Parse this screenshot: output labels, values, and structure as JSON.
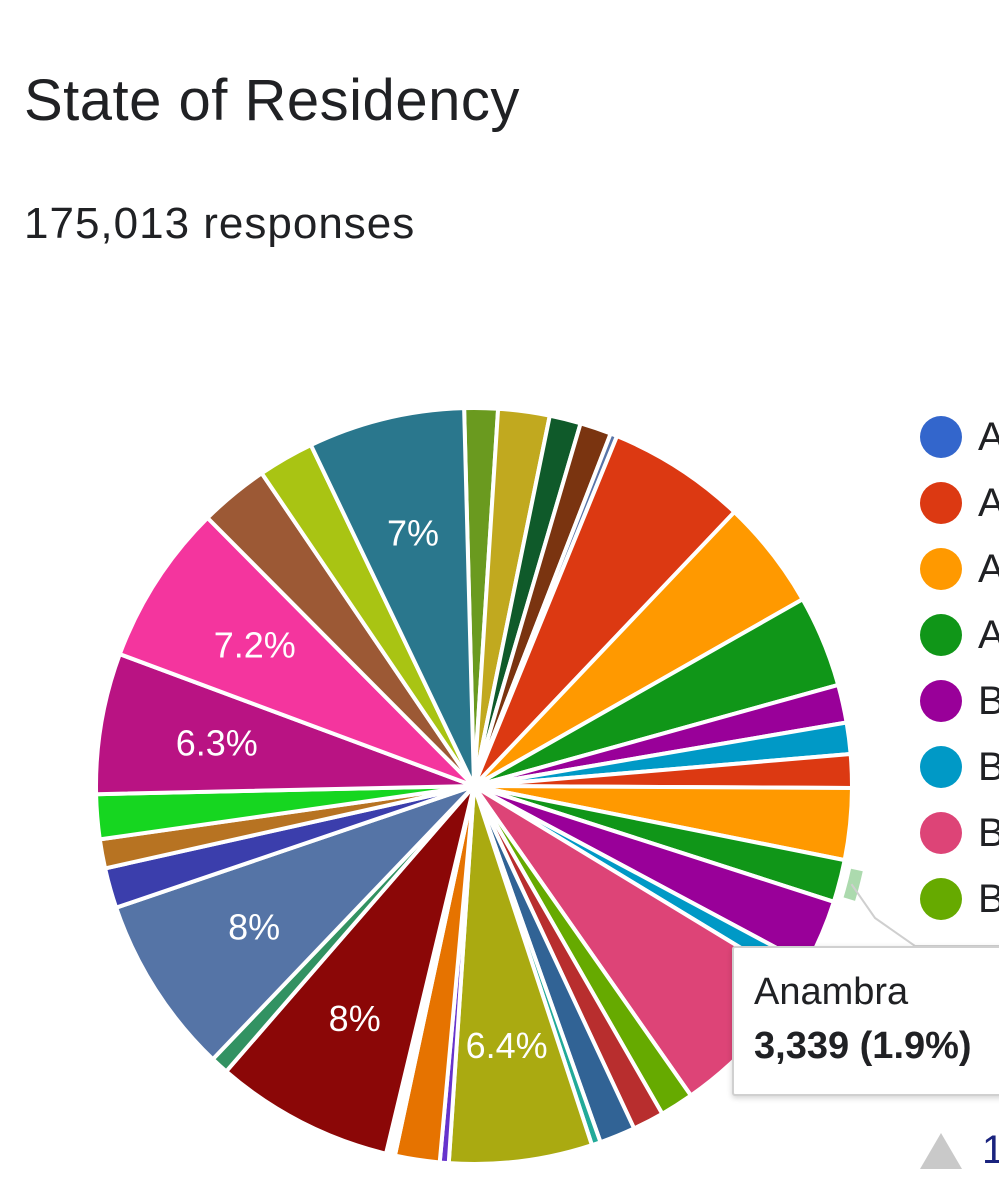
{
  "header": {
    "title": "State of Residency",
    "responses": "175,013 responses"
  },
  "legend": [
    {
      "label": "A",
      "color": "#3366cc"
    },
    {
      "label": "A",
      "color": "#dc3912"
    },
    {
      "label": "A",
      "color": "#ff9900"
    },
    {
      "label": "A",
      "color": "#109618"
    },
    {
      "label": "B",
      "color": "#990099"
    },
    {
      "label": "B",
      "color": "#0099c6"
    },
    {
      "label": "B",
      "color": "#dd4477"
    },
    {
      "label": "B",
      "color": "#66aa00"
    }
  ],
  "tooltip": {
    "name": "Anambra",
    "value": "3,339 (1.9%)"
  },
  "pager": {
    "text": "1"
  },
  "chart_data": {
    "type": "pie",
    "title": "State of Residency",
    "total_responses": 175013,
    "highlighted_slice": "Anambra",
    "slices": [
      {
        "percent": 1.5,
        "color": "#6a9a1f",
        "label": ""
      },
      {
        "percent": 2.3,
        "color": "#c1a91f",
        "label": ""
      },
      {
        "percent": 1.4,
        "color": "#0f5a2a",
        "label": ""
      },
      {
        "percent": 1.4,
        "color": "#7a3410",
        "label": ""
      },
      {
        "percent": 0.3,
        "color": "#5874a8",
        "label": ""
      },
      {
        "percent": 6.2,
        "color": "#dc3912",
        "label": ""
      },
      {
        "percent": 4.9,
        "color": "#ff9900",
        "label": ""
      },
      {
        "percent": 4.1,
        "color": "#109618",
        "label": ""
      },
      {
        "percent": 1.7,
        "color": "#990099",
        "label": ""
      },
      {
        "percent": 1.4,
        "color": "#0099c6",
        "label": ""
      },
      {
        "percent": 1.5,
        "color": "#dc3912",
        "label": ""
      },
      {
        "percent": 3.2,
        "color": "#ff9900",
        "label": ""
      },
      {
        "percent": 1.9,
        "color": "#109618",
        "label": "",
        "name": "Anambra",
        "count": 3339
      },
      {
        "percent": 3.0,
        "color": "#990099",
        "label": ""
      },
      {
        "percent": 0.9,
        "color": "#0099c6",
        "label": ""
      },
      {
        "percent": 6.9,
        "color": "#dd4477",
        "label": ""
      },
      {
        "percent": 1.5,
        "color": "#66aa00",
        "label": ""
      },
      {
        "percent": 1.4,
        "color": "#b82e2e",
        "label": ""
      },
      {
        "percent": 1.6,
        "color": "#316395",
        "label": ""
      },
      {
        "percent": 0.4,
        "color": "#22aa99",
        "label": ""
      },
      {
        "percent": 6.4,
        "color": "#aaaa11",
        "label": "6.4%"
      },
      {
        "percent": 0.4,
        "color": "#6633cc",
        "label": ""
      },
      {
        "percent": 2.0,
        "color": "#e67300",
        "label": ""
      },
      {
        "percent": 0.4,
        "color": "#ffffff",
        "label": ""
      },
      {
        "percent": 8.0,
        "color": "#8b0707",
        "label": "8%"
      },
      {
        "percent": 0.8,
        "color": "#329262",
        "label": ""
      },
      {
        "percent": 8.0,
        "color": "#5574a6",
        "label": "8%"
      },
      {
        "percent": 1.8,
        "color": "#3b3eac",
        "label": ""
      },
      {
        "percent": 1.3,
        "color": "#b77322",
        "label": ""
      },
      {
        "percent": 2.0,
        "color": "#16d620",
        "label": ""
      },
      {
        "percent": 6.3,
        "color": "#b91383",
        "label": "6.3%"
      },
      {
        "percent": 7.2,
        "color": "#f4359e",
        "label": "7.2%"
      },
      {
        "percent": 3.1,
        "color": "#9c5935",
        "label": ""
      },
      {
        "percent": 2.5,
        "color": "#a9c413",
        "label": ""
      },
      {
        "percent": 7.0,
        "color": "#2a778d",
        "label": "7%"
      }
    ]
  }
}
